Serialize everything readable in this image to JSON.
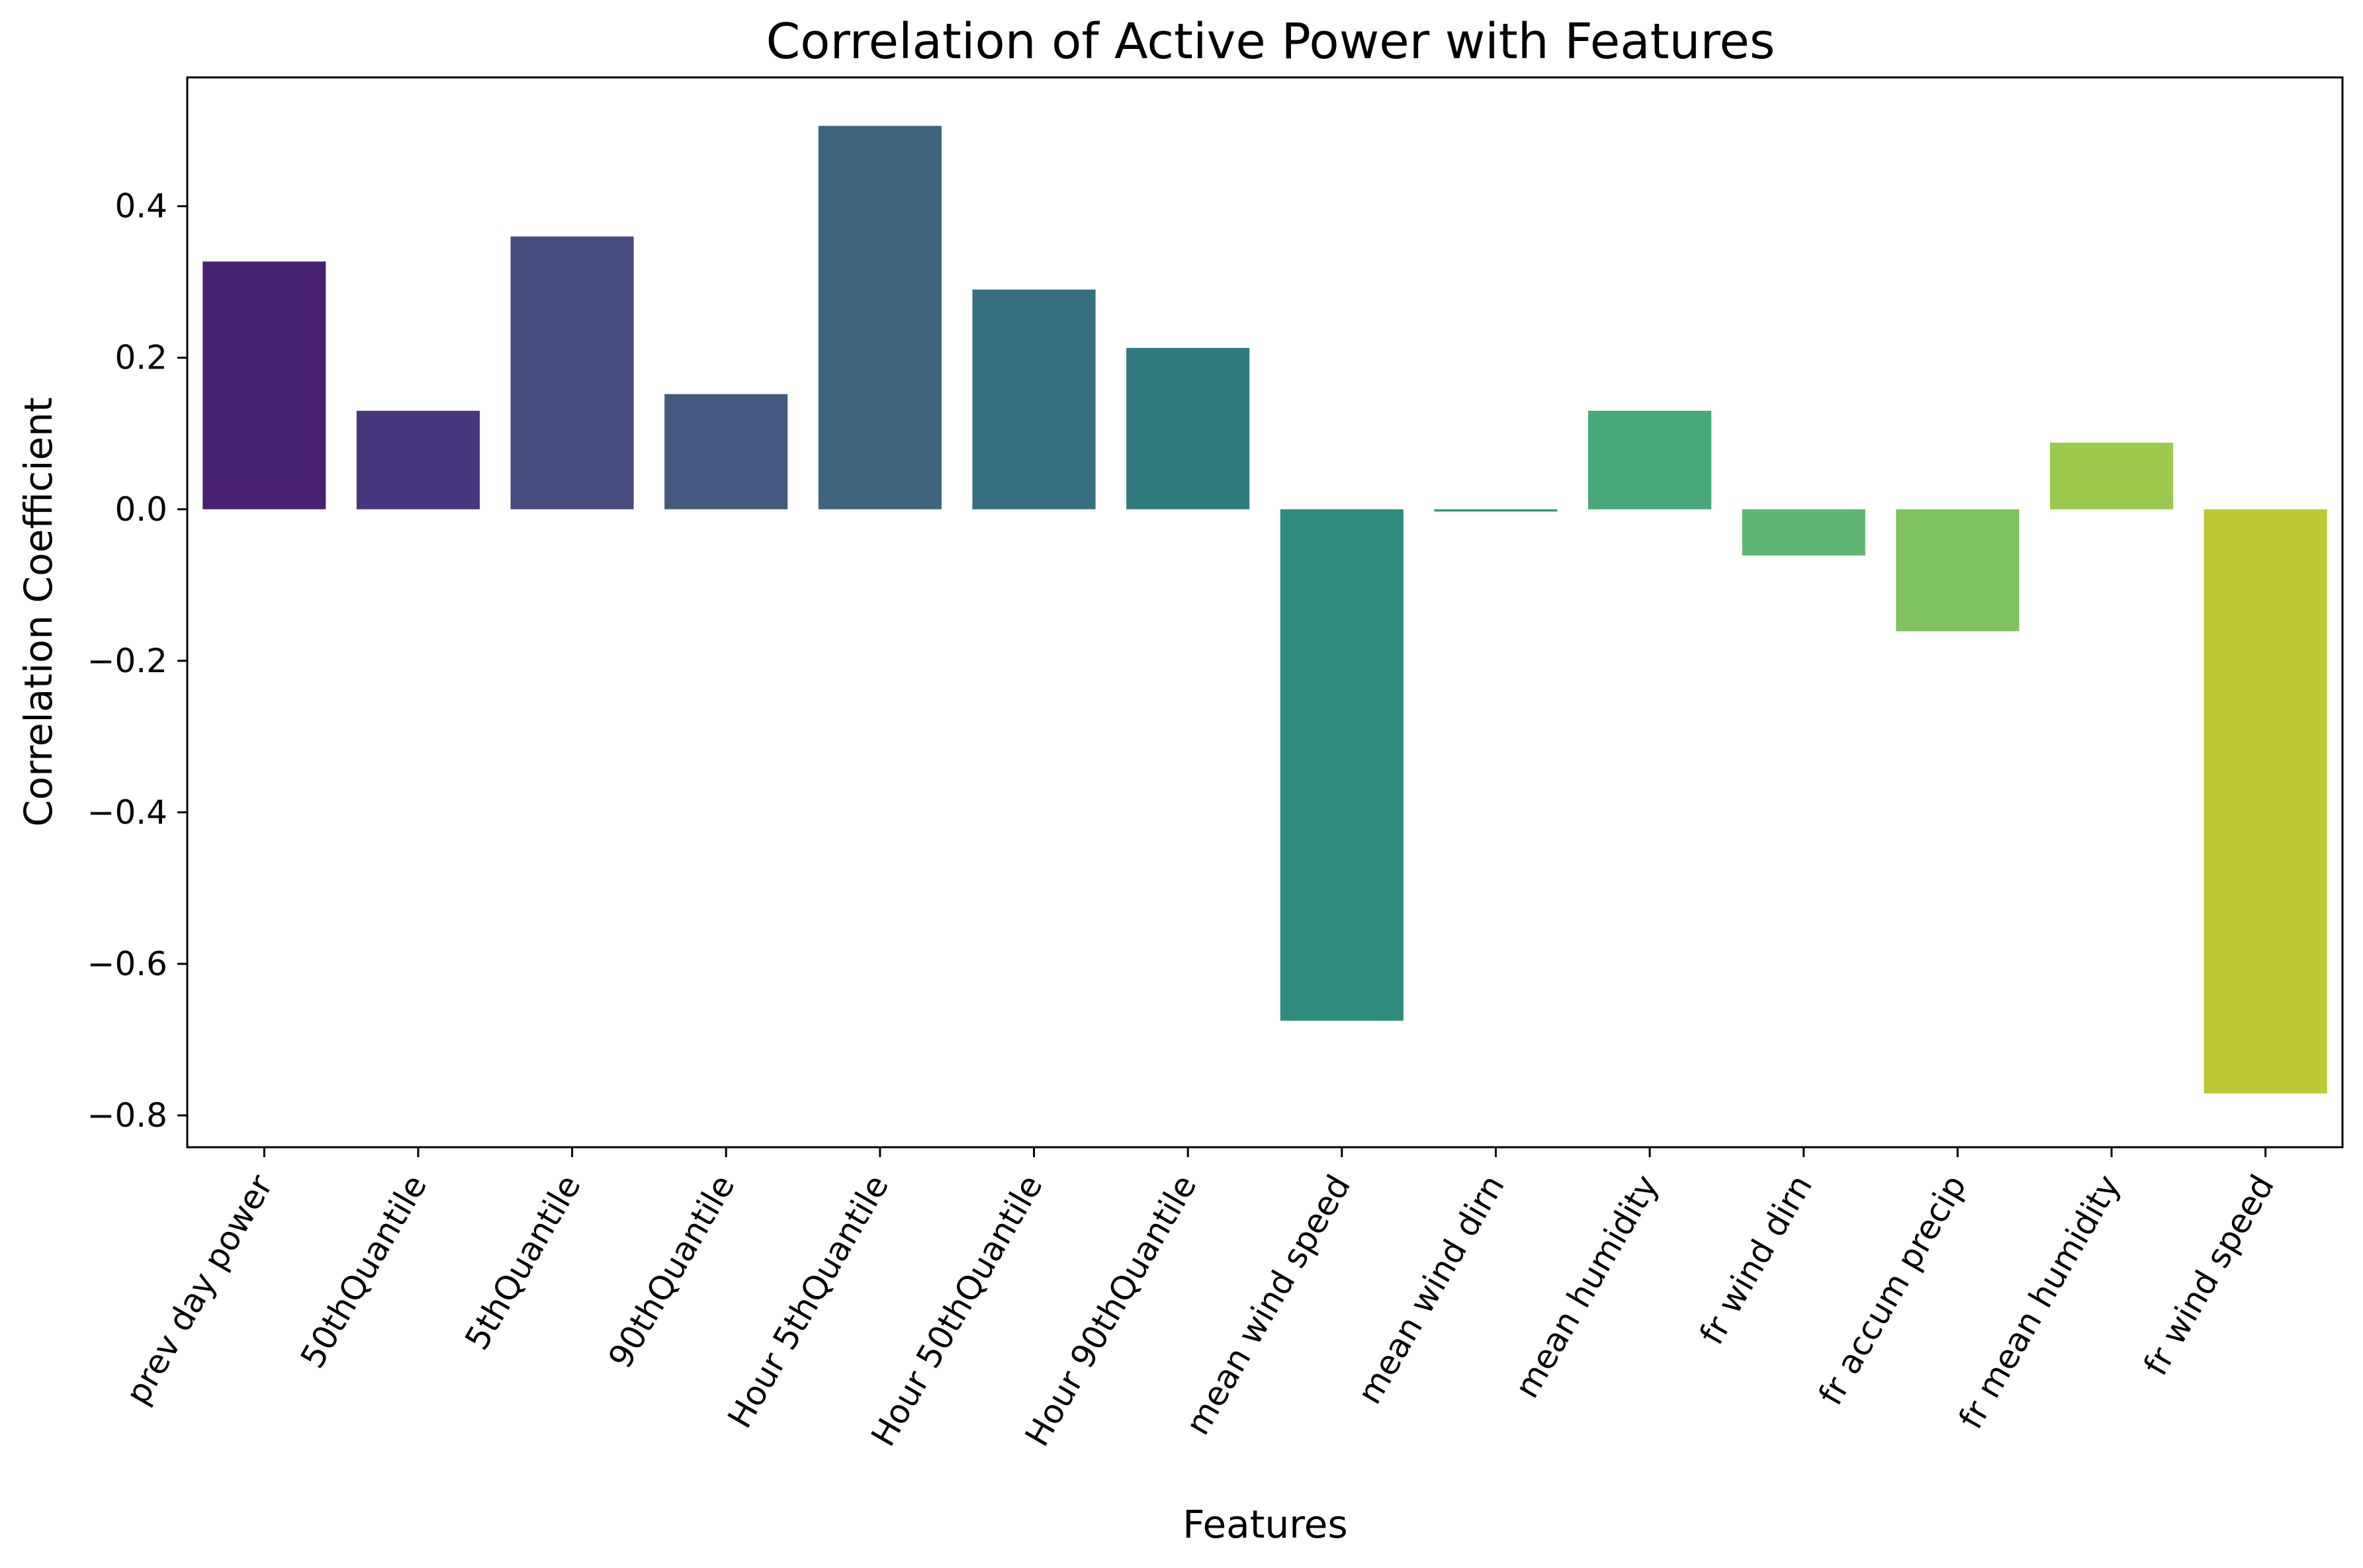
{
  "chart_data": {
    "type": "bar",
    "title": "Correlation of Active Power with Features",
    "xlabel": "Features",
    "ylabel": "Correlation Coefficient",
    "categories": [
      "prev day power",
      "50thQuantile",
      "5thQuantile",
      "90thQuantile",
      "Hour 5thQuantile",
      "Hour 50thQuantile",
      "Hour 90thQuantile",
      "mean wind speed",
      "mean wind dirn",
      "mean humidity",
      "fr wind dirn",
      "fr accum precip",
      "fr mean humidity",
      "fr wind speed"
    ],
    "values": [
      0.327,
      0.13,
      0.36,
      0.152,
      0.506,
      0.29,
      0.213,
      -0.675,
      -0.003,
      0.13,
      -0.061,
      -0.161,
      0.088,
      -0.771
    ],
    "colors": [
      "#482173",
      "#48367f",
      "#474b80",
      "#43597f",
      "#3d647f",
      "#366f7f",
      "#2f7b80",
      "#2e8b7d",
      "#2a9b78",
      "#47a87a",
      "#60b673",
      "#7fc260",
      "#9bc94e",
      "#bcc834"
    ],
    "ylim": [
      -0.842,
      0.57
    ],
    "yticks": [
      0.4,
      0.2,
      0.0,
      -0.2,
      -0.4,
      -0.6,
      -0.8
    ],
    "ytick_labels": [
      "0.4",
      "0.2",
      "0.0",
      "−0.2",
      "−0.4",
      "−0.6",
      "−0.8"
    ],
    "grid": false,
    "legend": "none"
  }
}
